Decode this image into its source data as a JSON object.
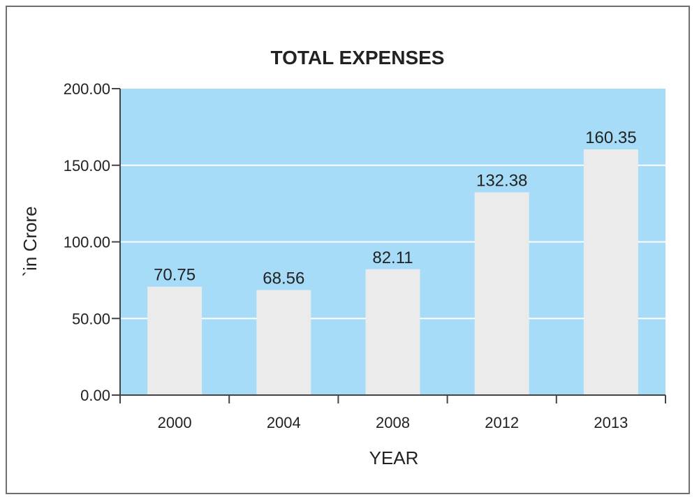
{
  "chart_data": {
    "type": "bar",
    "title": "TOTAL EXPENSES",
    "xlabel": "YEAR",
    "ylabel": "`in Crore",
    "categories": [
      "2000",
      "2004",
      "2008",
      "2012",
      "2013"
    ],
    "values": [
      70.75,
      68.56,
      82.11,
      132.38,
      160.35
    ],
    "data_labels": [
      "70.75",
      "68.56",
      "82.11",
      "132.38",
      "160.35"
    ],
    "ylim": [
      0,
      200
    ],
    "yticks": [
      "0.00",
      "50.00",
      "100.00",
      "150.00",
      "200.00"
    ],
    "grid": true,
    "legend": "none",
    "colors": {
      "plot_background": "#a6dcf7",
      "bar": "#ebebeb",
      "gridline": "#ffffff",
      "axis": "#444444"
    }
  }
}
